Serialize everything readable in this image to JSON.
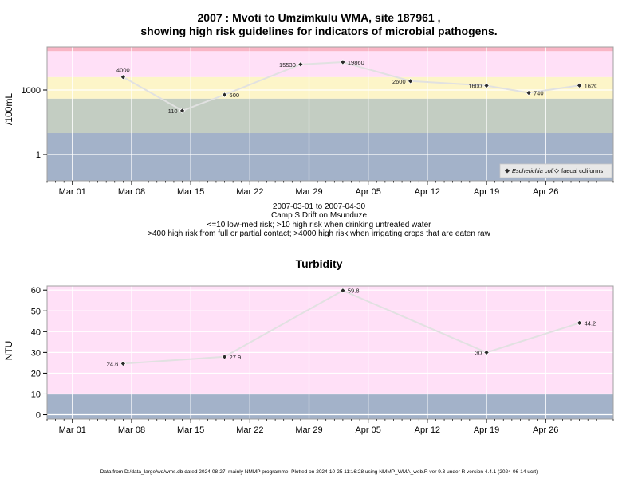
{
  "chart_data": [
    {
      "type": "line",
      "title": "2007 : Mvoti to Umzimkulu WMA, site 187961 ,",
      "subtitle": "showing high risk guidelines for indicators of microbial pathogens.",
      "xlabel": "",
      "ylabel": "/100mL",
      "y_scale": "log",
      "x_ticks": [
        "Mar 01",
        "Mar 08",
        "Mar 15",
        "Mar 22",
        "Mar 29",
        "Apr 05",
        "Apr 12",
        "Apr 19",
        "Apr 26"
      ],
      "x_tick_dates": [
        "2007-03-01",
        "2007-03-08",
        "2007-03-15",
        "2007-03-22",
        "2007-03-29",
        "2007-04-05",
        "2007-04-12",
        "2007-04-19",
        "2007-04-26"
      ],
      "x_range": [
        "2007-02-26",
        "2007-05-04"
      ],
      "y_ticks": [
        1,
        1000
      ],
      "y_tick_labels": [
        "1",
        "1000"
      ],
      "ylim": [
        0.06,
        100000
      ],
      "bands": [
        {
          "from": 0.06,
          "to": 10,
          "color": "#a3b2c9"
        },
        {
          "from": 10,
          "to": 400,
          "color": "#c3cdc2"
        },
        {
          "from": 400,
          "to": 4000,
          "color": "#fdf5c8"
        },
        {
          "from": 4000,
          "to": 64000,
          "color": "#ffe0f7"
        },
        {
          "from": 64000,
          "to": 100000,
          "color": "#f9b5c5"
        }
      ],
      "series": [
        {
          "name": "Escherichia coli",
          "x": [
            "2007-03-07",
            "2007-03-14",
            "2007-03-19",
            "2007-03-28",
            "2007-04-02",
            "2007-04-10",
            "2007-04-19",
            "2007-04-24",
            "2007-04-30"
          ],
          "y": [
            4000,
            110,
            600,
            15530,
            19860,
            2600,
            1600,
            740,
            1620
          ],
          "labels": [
            "4000",
            "110",
            "600",
            "15530",
            "19860",
            "2600",
            "1600",
            "740",
            "1620"
          ],
          "label_side": [
            "above",
            "left",
            "right",
            "left",
            "right",
            "left",
            "left",
            "right",
            "right"
          ]
        }
      ],
      "legend": {
        "position": "bottom-right",
        "items": [
          {
            "label": "Escherichia coli",
            "marker": "filled-diamond"
          },
          {
            "label": "faecal coliforms",
            "marker": "open-diamond"
          }
        ]
      },
      "grid": true,
      "colors": {
        "line": "#e1e1e1",
        "grid": "#ffffff",
        "marker": "#2b2b2b",
        "border": "#a0a0a0"
      }
    },
    {
      "type": "line",
      "title": "Turbidity",
      "xlabel": "",
      "ylabel": "NTU",
      "y_scale": "linear",
      "x_ticks": [
        "Mar 01",
        "Mar 08",
        "Mar 15",
        "Mar 22",
        "Mar 29",
        "Apr 05",
        "Apr 12",
        "Apr 19",
        "Apr 26"
      ],
      "x_tick_dates": [
        "2007-03-01",
        "2007-03-08",
        "2007-03-15",
        "2007-03-22",
        "2007-03-29",
        "2007-04-05",
        "2007-04-12",
        "2007-04-19",
        "2007-04-26"
      ],
      "x_range": [
        "2007-02-26",
        "2007-05-04"
      ],
      "y_ticks": [
        0,
        10,
        20,
        30,
        40,
        50,
        60
      ],
      "y_tick_labels": [
        "0",
        "10",
        "20",
        "30",
        "40",
        "50",
        "60"
      ],
      "ylim": [
        -2.1,
        62
      ],
      "bands": [
        {
          "from": -2.1,
          "to": 10,
          "color": "#a3b2c9"
        },
        {
          "from": 10,
          "to": 62,
          "color": "#ffe0f7"
        }
      ],
      "series": [
        {
          "name": "",
          "x": [
            "2007-03-07",
            "2007-03-19",
            "2007-04-02",
            "2007-04-19",
            "2007-04-30"
          ],
          "y": [
            24.6,
            27.9,
            59.8,
            30,
            44.2
          ],
          "labels": [
            "24.6",
            "27.9",
            "59.8",
            "30",
            "44.2"
          ],
          "label_side": [
            "left",
            "right",
            "right",
            "left",
            "right"
          ]
        }
      ],
      "grid": true,
      "colors": {
        "line": "#e1e1e1",
        "grid": "#ffffff",
        "marker": "#2b2b2b",
        "border": "#a0a0a0"
      }
    }
  ],
  "text": {
    "date_range": "2007-03-01 to 2007-04-30",
    "site_name": "Camp S Drift on Msunduze",
    "guideline_1": "<=10 low-med risk; >10 high risk when drinking untreated water",
    "guideline_2": ">400 high risk from full or partial contact; >4000 high risk when irrigating crops that are eaten raw",
    "footer": "Data from D:/data_large/wq/wms.db dated 2024-08-27, mainly NMMP programme. Plotted on 2024-10-25 11:16:28 using NMMP_WMA_web.R ver 9.3 under R version 4.4.1 (2024-06-14 ucrt)"
  }
}
